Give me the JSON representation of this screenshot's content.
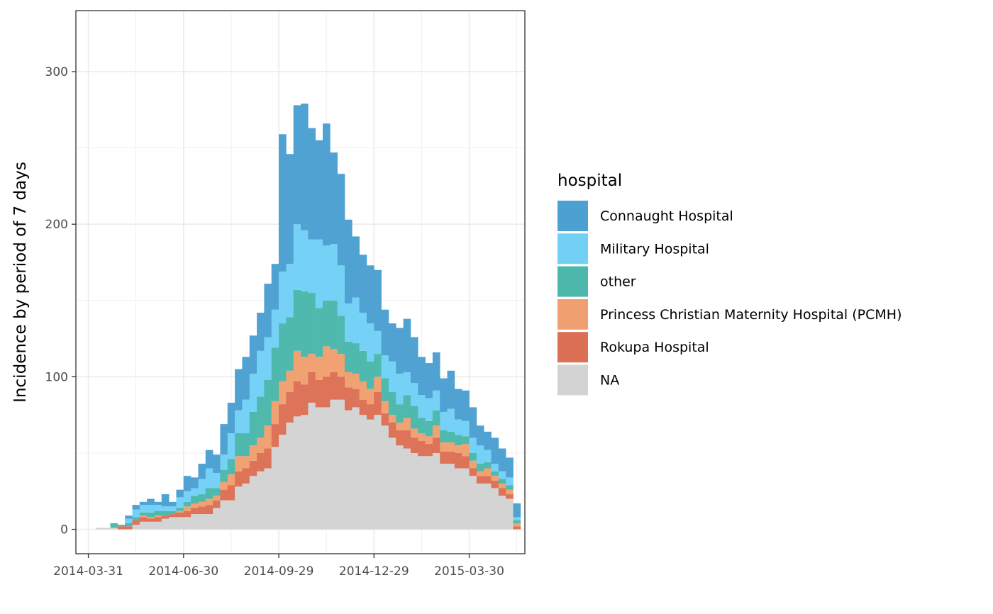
{
  "chart_data": {
    "type": "bar",
    "stacked": true,
    "xlabel": "",
    "ylabel": "Incidence by period of 7 days",
    "ylim": [
      -16,
      340
    ],
    "y_ticks": [
      0,
      100,
      200,
      300
    ],
    "x_tick_labels": [
      "2014-03-31",
      "2014-06-30",
      "2014-09-29",
      "2014-12-29",
      "2015-03-30"
    ],
    "x_tick_week_index": [
      0,
      13,
      26,
      39,
      52
    ],
    "x_range_weeks": [
      -1.7,
      59.6
    ],
    "first_week_start": "2014-03-31",
    "grid": true,
    "legend": {
      "title": "hospital",
      "position": "right"
    },
    "series": [
      {
        "name": "Connaught Hospital",
        "color": "#4da0d2",
        "values": [
          0,
          0,
          0,
          0,
          0,
          2,
          3,
          2,
          4,
          2,
          8,
          3,
          5,
          10,
          7,
          10,
          12,
          12,
          20,
          20,
          27,
          28,
          25,
          25,
          35,
          30,
          90,
          72,
          78,
          83,
          73,
          65,
          80,
          60,
          60,
          55,
          40,
          38,
          38,
          40,
          30,
          25,
          30,
          35,
          30,
          25,
          23,
          25,
          22,
          25,
          20,
          20,
          20,
          13,
          12,
          17,
          15,
          13,
          9
        ]
      },
      {
        "name": "Military Hospital",
        "color": "#72d0f5",
        "values": [
          0,
          0,
          0,
          0,
          0,
          3,
          5,
          5,
          5,
          4,
          3,
          3,
          7,
          7,
          5,
          10,
          13,
          10,
          10,
          17,
          15,
          22,
          25,
          30,
          28,
          25,
          34,
          35,
          43,
          40,
          35,
          45,
          36,
          37,
          33,
          25,
          30,
          25,
          25,
          15,
          15,
          20,
          20,
          15,
          15,
          15,
          15,
          13,
          12,
          15,
          10,
          10,
          10,
          12,
          8,
          5,
          5,
          5,
          2
        ]
      },
      {
        "name": "other",
        "color": "#4cb8ab",
        "values": [
          0,
          0,
          0,
          3,
          1,
          2,
          2,
          2,
          3,
          3,
          3,
          2,
          2,
          3,
          5,
          5,
          7,
          5,
          8,
          10,
          15,
          15,
          22,
          27,
          30,
          35,
          38,
          35,
          40,
          43,
          40,
          32,
          30,
          32,
          25,
          20,
          20,
          20,
          18,
          15,
          15,
          15,
          12,
          15,
          15,
          10,
          10,
          10,
          8,
          7,
          7,
          5,
          5,
          5,
          4,
          3,
          3,
          3,
          2
        ]
      },
      {
        "name": "Princess Christian Maternity Hospital (PCMH)",
        "color": "#f0a070",
        "values": [
          0,
          0,
          0,
          0,
          0,
          0,
          0,
          1,
          1,
          1,
          0,
          0,
          1,
          3,
          3,
          3,
          4,
          3,
          5,
          7,
          10,
          8,
          10,
          10,
          15,
          15,
          15,
          14,
          20,
          18,
          12,
          15,
          20,
          15,
          15,
          10,
          10,
          12,
          10,
          10,
          8,
          5,
          5,
          8,
          6,
          5,
          5,
          8,
          6,
          6,
          5,
          8,
          5,
          3,
          5,
          3,
          3,
          3,
          2
        ]
      },
      {
        "name": "Rokupa Hospital",
        "color": "#dc7055",
        "values": [
          0,
          0,
          0,
          0,
          2,
          2,
          3,
          3,
          2,
          3,
          2,
          2,
          3,
          4,
          4,
          5,
          6,
          5,
          7,
          10,
          10,
          10,
          10,
          12,
          13,
          15,
          20,
          20,
          23,
          20,
          20,
          18,
          20,
          18,
          15,
          15,
          12,
          10,
          10,
          15,
          8,
          10,
          10,
          12,
          10,
          10,
          8,
          10,
          8,
          8,
          10,
          8,
          5,
          5,
          5,
          5,
          5,
          3,
          2
        ]
      },
      {
        "name": "NA",
        "color": "#d3d3d3",
        "values": [
          0,
          1,
          1,
          1,
          0,
          0,
          3,
          5,
          5,
          5,
          7,
          8,
          8,
          8,
          10,
          10,
          10,
          14,
          19,
          19,
          28,
          30,
          35,
          38,
          40,
          54,
          62,
          70,
          74,
          75,
          83,
          80,
          80,
          85,
          85,
          78,
          80,
          75,
          72,
          75,
          68,
          60,
          55,
          53,
          50,
          48,
          48,
          50,
          43,
          43,
          40,
          40,
          35,
          30,
          30,
          27,
          22,
          20,
          0
        ]
      }
    ]
  }
}
